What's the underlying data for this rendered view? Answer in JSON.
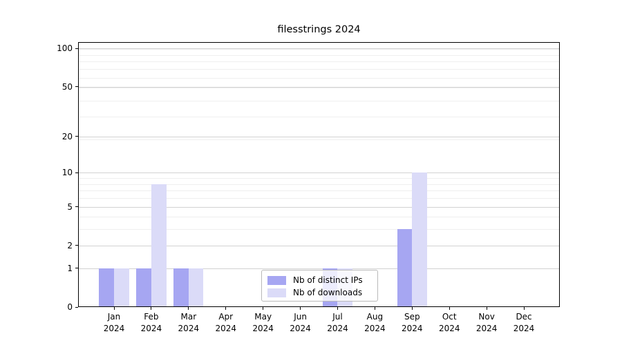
{
  "chart_data": {
    "type": "bar",
    "title": "filesstrings 2024",
    "year": "2024",
    "categories": [
      "Jan",
      "Feb",
      "Mar",
      "Apr",
      "May",
      "Jun",
      "Jul",
      "Aug",
      "Sep",
      "Oct",
      "Nov",
      "Dec"
    ],
    "series": [
      {
        "name": "Nb of distinct IPs",
        "key": "distinct-ips",
        "color": "#a6a6f2",
        "values": [
          1,
          1,
          1,
          0,
          0,
          0,
          1,
          0,
          3,
          0,
          0,
          0
        ]
      },
      {
        "name": "Nb of downloads",
        "key": "downloads",
        "color": "#dbdbf8",
        "values": [
          1,
          8,
          1,
          0,
          0,
          0,
          1,
          0,
          10,
          0,
          0,
          0
        ]
      }
    ],
    "yscale": "log1p",
    "ylim": [
      0,
      113
    ],
    "yticks": [
      0,
      1,
      2,
      5,
      10,
      20,
      50,
      100
    ],
    "yticks_minor": [
      3,
      4,
      6,
      7,
      8,
      9,
      19,
      29,
      39,
      49,
      59,
      69,
      79,
      89,
      99
    ],
    "grid": true,
    "legend_position": "lower center"
  }
}
